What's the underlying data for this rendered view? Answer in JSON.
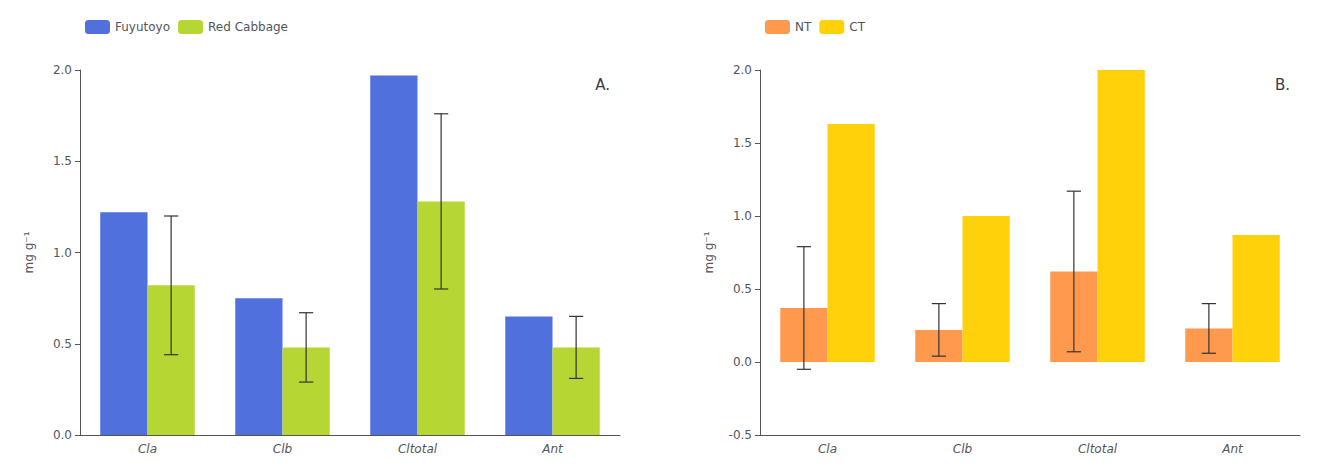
{
  "chart_data": [
    {
      "type": "bar",
      "title": "A.",
      "categories": [
        "Cla",
        "Clb",
        "Cltotal",
        "Ant"
      ],
      "series": [
        {
          "name": "Fuyutoyo",
          "values": [
            1.22,
            0.75,
            1.97,
            0.65
          ]
        },
        {
          "name": "Red Cabbage",
          "values": [
            0.82,
            0.48,
            1.28,
            0.48
          ],
          "errors": [
            0.38,
            0.19,
            0.48,
            0.17
          ]
        }
      ],
      "ylabel": "mg g⁻¹",
      "ylim": [
        0.0,
        2.0
      ],
      "yticks": [
        {
          "value": 0,
          "label": "0.0"
        },
        0.5,
        {
          "value": 1,
          "label": "1.0"
        },
        1.5,
        {
          "value": 2,
          "label": "2.0"
        }
      ],
      "legend": "upper left",
      "grid": false
    },
    {
      "type": "bar",
      "title": "B.",
      "categories": [
        "Cla",
        "Clb",
        "Cltotal",
        "Ant"
      ],
      "series": [
        {
          "name": "NT",
          "values": [
            0.37,
            0.22,
            0.62,
            0.23
          ],
          "errors": [
            0.42,
            0.18,
            0.55,
            0.17
          ]
        },
        {
          "name": "CT",
          "values": [
            1.63,
            1.0,
            2.0,
            0.87
          ]
        }
      ],
      "ylabel": "mg g⁻¹",
      "ylim": [
        -0.5,
        2.0
      ],
      "yticks": [
        -0.5,
        {
          "value": 0,
          "label": "0.0"
        },
        0.5,
        {
          "value": 1,
          "label": "1.0"
        },
        1.5,
        {
          "value": 2,
          "label": "2.0"
        }
      ],
      "legend": "upper left",
      "grid": false
    }
  ]
}
